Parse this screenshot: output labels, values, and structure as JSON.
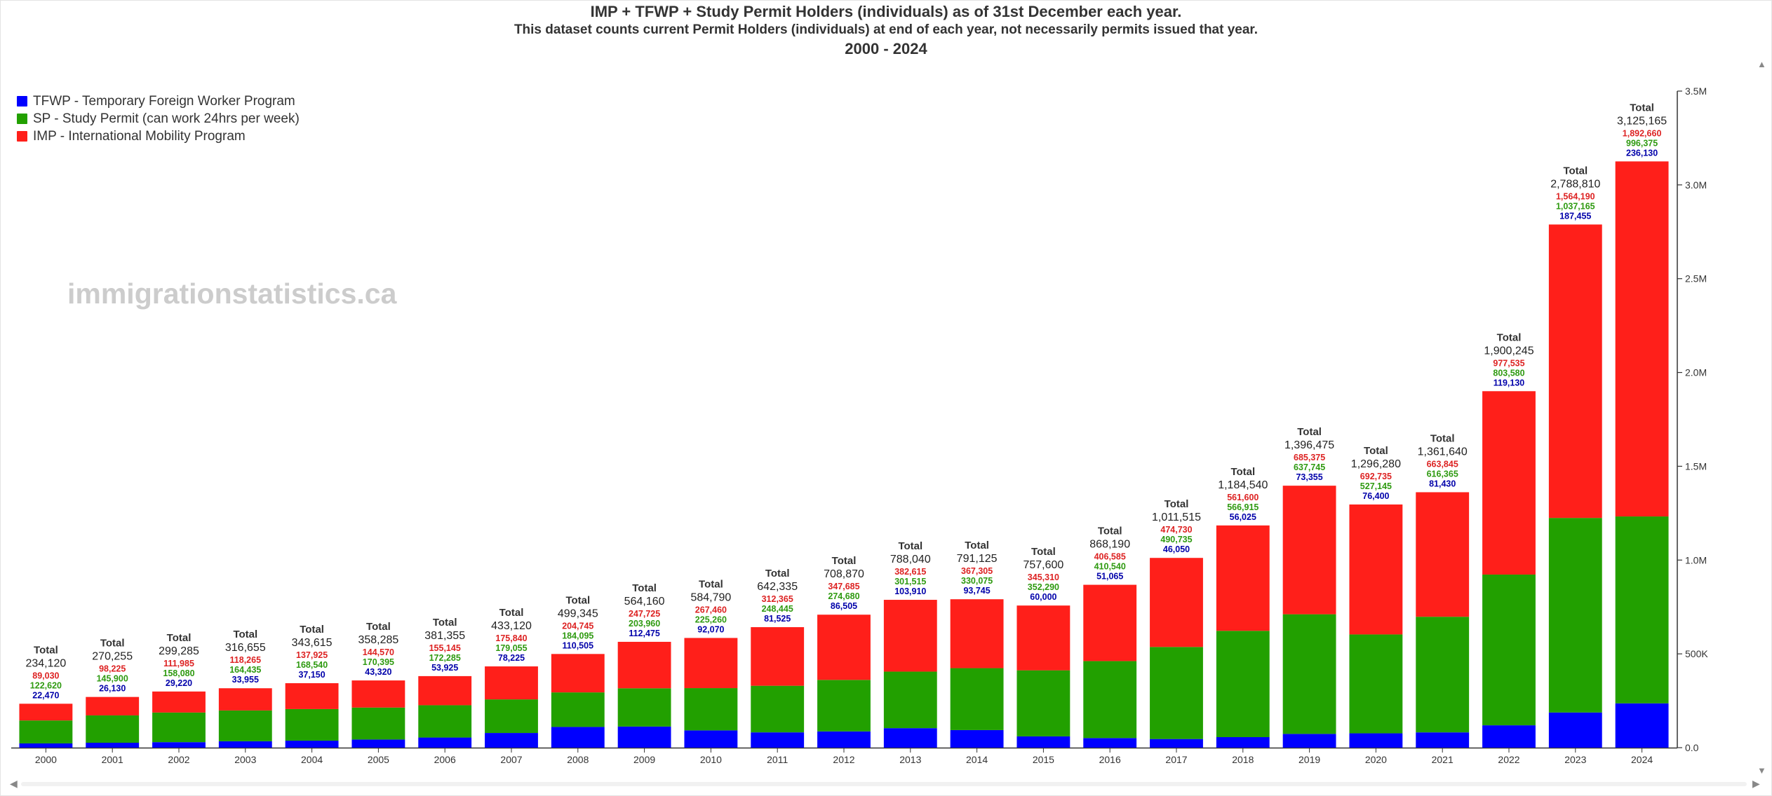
{
  "title": "IMP + TFWP + Study Permit Holders (individuals) as of 31st December each year.",
  "subtitle": "This dataset counts current Permit Holders (individuals) at end of each year, not necessarily permits issued that year.",
  "period": "2000 - 2024",
  "watermark": "immigrationstatistics.ca",
  "total_label": "Total",
  "colors": {
    "tfwp": "#0000ff",
    "sp": "#22a000",
    "imp": "#ff1f1a",
    "tfwp_text": "#0000aa",
    "sp_text": "#2e9a10",
    "imp_text": "#dd2222"
  },
  "legend": [
    {
      "key": "tfwp",
      "label": "TFWP - Temporary Foreign Worker Program"
    },
    {
      "key": "sp",
      "label": "SP - Study Permit (can work 24hrs per week)"
    },
    {
      "key": "imp",
      "label": "IMP - International Mobility Program"
    }
  ],
  "controls": {
    "scroll_left": "◀",
    "scroll_right": "▶",
    "scroll_up": "▲",
    "scroll_down": "▼"
  },
  "chart_data": {
    "type": "bar",
    "stacked": true,
    "categories": [
      "2000",
      "2001",
      "2002",
      "2003",
      "2004",
      "2005",
      "2006",
      "2007",
      "2008",
      "2009",
      "2010",
      "2011",
      "2012",
      "2013",
      "2014",
      "2015",
      "2016",
      "2017",
      "2018",
      "2019",
      "2020",
      "2021",
      "2022",
      "2023",
      "2024"
    ],
    "series": [
      {
        "name": "TFWP - Temporary Foreign Worker Program",
        "key": "tfwp",
        "values": [
          22470,
          26130,
          29220,
          33955,
          37150,
          43320,
          53925,
          78225,
          110505,
          112475,
          92070,
          81525,
          86505,
          103910,
          93745,
          60000,
          51065,
          46050,
          56025,
          73355,
          76400,
          81430,
          119130,
          187455,
          236130
        ]
      },
      {
        "name": "SP - Study Permit (can work 24hrs per week)",
        "key": "sp",
        "values": [
          122620,
          145900,
          158080,
          164435,
          168540,
          170395,
          172285,
          179055,
          184095,
          203960,
          225260,
          248445,
          274680,
          301515,
          330075,
          352290,
          410540,
          490735,
          566915,
          637745,
          527145,
          616365,
          803580,
          1037165,
          996375
        ]
      },
      {
        "name": "IMP - International Mobility Program",
        "key": "imp",
        "values": [
          89030,
          98225,
          111985,
          118265,
          137925,
          144570,
          155145,
          175840,
          204745,
          247725,
          267460,
          312365,
          347685,
          382615,
          367305,
          345310,
          406585,
          474730,
          561600,
          685375,
          692735,
          663845,
          977535,
          1564190,
          1892660
        ]
      }
    ],
    "totals": [
      234120,
      270255,
      299285,
      316655,
      343615,
      358285,
      381355,
      433120,
      499345,
      564160,
      584790,
      642335,
      708870,
      788040,
      791125,
      757600,
      868190,
      1011515,
      1184540,
      1396475,
      1296280,
      1361640,
      1900245,
      2788810,
      3125165
    ],
    "ylim": [
      0,
      3500000
    ],
    "y_ticks": [
      {
        "value": 0,
        "label": "0.0"
      },
      {
        "value": 500000,
        "label": "500K"
      },
      {
        "value": 1000000,
        "label": "1.0M"
      },
      {
        "value": 1500000,
        "label": "1.5M"
      },
      {
        "value": 2000000,
        "label": "2.0M"
      },
      {
        "value": 2500000,
        "label": "2.5M"
      },
      {
        "value": 3000000,
        "label": "3.0M"
      },
      {
        "value": 3500000,
        "label": "3.5M"
      }
    ],
    "y_axis_position": "right",
    "legend_position": "top-left",
    "grid": false
  }
}
